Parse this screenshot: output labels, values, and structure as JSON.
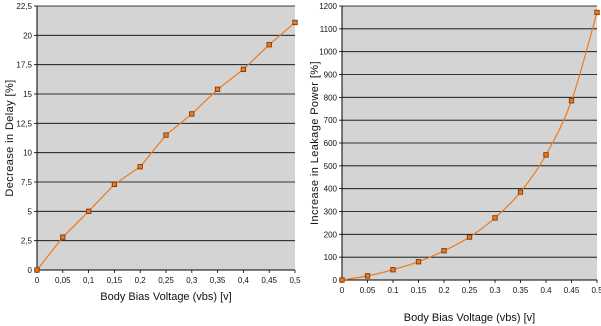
{
  "chart_data": [
    {
      "type": "line",
      "title": "",
      "xlabel": "Body Bias Voltage (vbs) [v]",
      "ylabel": "Decrease in Delay [%]",
      "x": [
        0,
        0.05,
        0.1,
        0.15,
        0.2,
        0.25,
        0.3,
        0.35,
        0.4,
        0.45,
        0.5
      ],
      "values": [
        0,
        2.8,
        5.0,
        7.3,
        8.8,
        11.5,
        13.3,
        15.4,
        17.1,
        19.2,
        21.1
      ],
      "xlim": [
        0,
        0.5
      ],
      "ylim": [
        0,
        22.5
      ],
      "xticks": [
        0,
        0.05,
        0.1,
        0.15,
        0.2,
        0.25,
        0.3,
        0.35,
        0.4,
        0.45,
        0.5
      ],
      "xtick_labels": [
        "0",
        "0,05",
        "0,1",
        "0,15",
        "0,2",
        "0,25",
        "0,3",
        "0,35",
        "0,4",
        "0,45",
        "0,5"
      ],
      "yticks": [
        0,
        2.5,
        5,
        7.5,
        10,
        12.5,
        15,
        17.5,
        20,
        22.5
      ],
      "ytick_labels": [
        "0",
        "2,5",
        "5",
        "7,5",
        "10",
        "12,5",
        "15",
        "17,5",
        "20",
        "22,5"
      ],
      "grid": true,
      "line_color": "#F07A1A",
      "marker_color": "#7A3A10",
      "plot_bg": "#D4D4D4"
    },
    {
      "type": "line",
      "title": "",
      "xlabel": "Body Bias Voltage (vbs) [v]",
      "ylabel": "Increase in Leakage Power [%]",
      "x": [
        0,
        0.05,
        0.1,
        0.15,
        0.2,
        0.25,
        0.3,
        0.35,
        0.4,
        0.45,
        0.5
      ],
      "values": [
        0,
        18,
        45,
        80,
        128,
        188,
        272,
        385,
        548,
        785,
        1172
      ],
      "xlim": [
        0,
        0.5
      ],
      "ylim": [
        0,
        1200
      ],
      "xticks": [
        0,
        0.05,
        0.1,
        0.15,
        0.2,
        0.25,
        0.3,
        0.35,
        0.4,
        0.45,
        0.5
      ],
      "xtick_labels": [
        "0",
        "0.05",
        "0.1",
        "0.15",
        "0.2",
        "0.25",
        "0.3",
        "0.35",
        "0.4",
        "0.45",
        "0.5"
      ],
      "yticks": [
        0,
        100,
        200,
        300,
        400,
        500,
        600,
        700,
        800,
        900,
        1000,
        1100,
        1200
      ],
      "ytick_labels": [
        "0",
        "100",
        "200",
        "300",
        "400",
        "500",
        "600",
        "700",
        "800",
        "900",
        "1000",
        "1100",
        "1200"
      ],
      "grid": true,
      "line_color": "#F07A1A",
      "marker_color": "#7A3A10",
      "plot_bg": "#D4D4D4"
    }
  ]
}
